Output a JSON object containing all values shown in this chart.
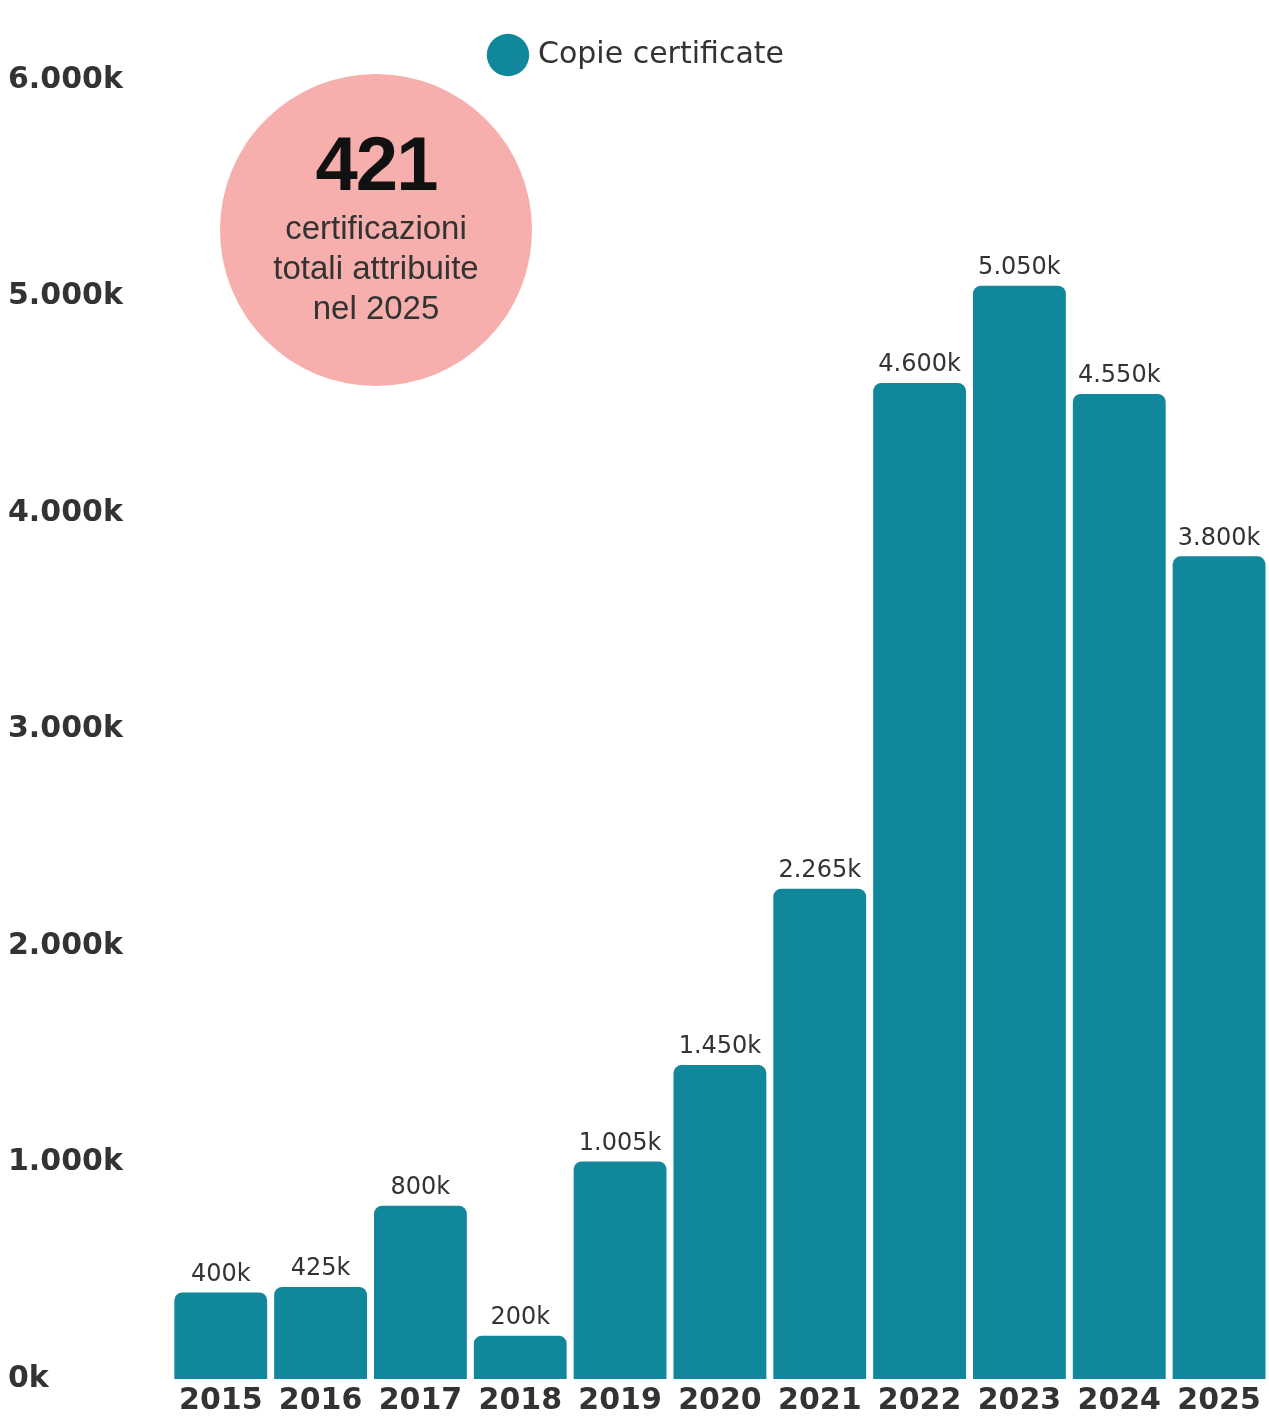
{
  "chart_data": {
    "type": "bar",
    "categories": [
      "2015",
      "2016",
      "2017",
      "2018",
      "2019",
      "2020",
      "2021",
      "2022",
      "2023",
      "2024",
      "2025"
    ],
    "series": [
      {
        "name": "Copie certificate",
        "color": "#11879b",
        "values": [
          400,
          425,
          800,
          200,
          1005,
          1450,
          2265,
          4600,
          5050,
          4550,
          3800
        ],
        "value_labels": [
          "400k",
          "425k",
          "800k",
          "200k",
          "1.005k",
          "1.450k",
          "2.265k",
          "4.600k",
          "5.050k",
          "4.550k",
          "3.800k"
        ]
      }
    ],
    "ylim": [
      0,
      6000
    ],
    "yticks": [
      {
        "value": 0,
        "label": "0k"
      },
      {
        "value": 1000,
        "label": "1.000k"
      },
      {
        "value": 2000,
        "label": "2.000k"
      },
      {
        "value": 3000,
        "label": "3.000k"
      },
      {
        "value": 4000,
        "label": "4.000k"
      },
      {
        "value": 5000,
        "label": "5.000k"
      },
      {
        "value": 6000,
        "label": "6.000k"
      }
    ],
    "grid": false,
    "legend": "top",
    "annotations": [
      "421",
      "certificazioni totali attribuite nel 2025"
    ]
  }
}
